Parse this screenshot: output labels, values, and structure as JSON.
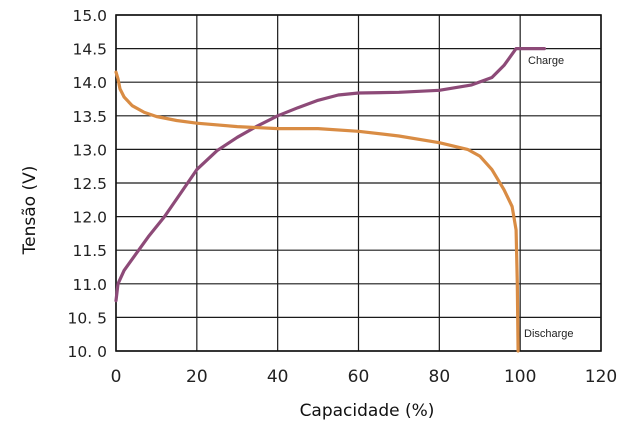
{
  "chart_data": {
    "type": "line",
    "xlabel": "Capacidade (%)",
    "ylabel": "Tensão (V)",
    "xlim": [
      0,
      120
    ],
    "ylim": [
      10.0,
      15.0
    ],
    "grid": true,
    "x_tick_labels": [
      "0",
      "20",
      "40",
      "60",
      "80",
      "100",
      "120"
    ],
    "y_tick_labels": [
      "10. 0",
      "10. 5",
      "11.0",
      "11.5",
      "12.0",
      "12.5",
      "13.0",
      "13.5",
      "14.0",
      "14.5",
      "15.0"
    ],
    "series": [
      {
        "name": "Charge",
        "color": "#8d4a78",
        "points": [
          [
            0,
            10.75
          ],
          [
            0.5,
            11.0
          ],
          [
            2,
            11.2
          ],
          [
            5,
            11.45
          ],
          [
            8,
            11.7
          ],
          [
            12,
            12.0
          ],
          [
            16,
            12.35
          ],
          [
            20,
            12.7
          ],
          [
            25,
            12.98
          ],
          [
            30,
            13.18
          ],
          [
            35,
            13.35
          ],
          [
            40,
            13.5
          ],
          [
            45,
            13.62
          ],
          [
            50,
            13.73
          ],
          [
            55,
            13.81
          ],
          [
            60,
            13.84
          ],
          [
            70,
            13.85
          ],
          [
            80,
            13.88
          ],
          [
            88,
            13.96
          ],
          [
            93,
            14.07
          ],
          [
            96,
            14.25
          ],
          [
            99,
            14.5
          ],
          [
            103,
            14.5
          ],
          [
            106,
            14.5
          ]
        ]
      },
      {
        "name": "Discharge",
        "color": "#d98c44",
        "points": [
          [
            0,
            14.15
          ],
          [
            0.5,
            14.05
          ],
          [
            1,
            13.9
          ],
          [
            2,
            13.78
          ],
          [
            4,
            13.65
          ],
          [
            7,
            13.55
          ],
          [
            10,
            13.49
          ],
          [
            15,
            13.43
          ],
          [
            20,
            13.39
          ],
          [
            30,
            13.34
          ],
          [
            40,
            13.31
          ],
          [
            50,
            13.31
          ],
          [
            60,
            13.27
          ],
          [
            70,
            13.2
          ],
          [
            80,
            13.1
          ],
          [
            87,
            13.0
          ],
          [
            90,
            12.9
          ],
          [
            93,
            12.7
          ],
          [
            96,
            12.4
          ],
          [
            98,
            12.15
          ],
          [
            99,
            11.8
          ],
          [
            99.3,
            11.0
          ],
          [
            99.5,
            10.0
          ]
        ]
      }
    ]
  }
}
